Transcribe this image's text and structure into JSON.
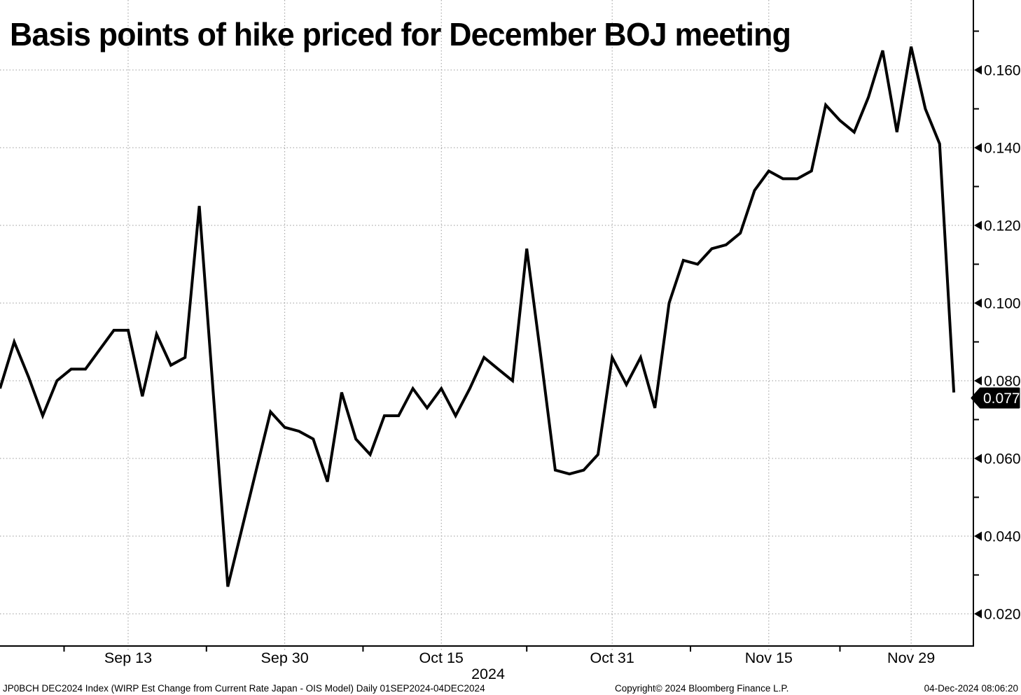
{
  "title": "Basis points of hike priced for December BOJ meeting",
  "last_value_label": "0.077",
  "footer": {
    "left": "JP0BCH DEC2024 Index (WIRP Est Change from Current Rate Japan - OIS Model)  Daily 01SEP2024-04DEC2024",
    "center": "Copyright© 2024 Bloomberg Finance L.P.",
    "right": "04-Dec-2024 08:06:20"
  },
  "colors": {
    "background": "#ffffff",
    "line": "#000000",
    "grid": "#9a9a9a",
    "axis": "#000000",
    "badge_bg": "#000000",
    "badge_text": "#ffffff"
  },
  "chart_data": {
    "type": "line",
    "title": "Basis points of hike priced for December BOJ meeting",
    "xlabel": "",
    "ylabel": "",
    "x_axis_year_label": "2024",
    "grid": "dotted",
    "legend": "none",
    "ylim": [
      0.01,
      0.178
    ],
    "y_ticks": [
      0.16,
      0.14,
      0.12,
      0.1,
      0.08,
      0.06,
      0.04,
      0.02
    ],
    "x_ticks": [
      {
        "label": "Sep 13",
        "index": 9
      },
      {
        "label": "Sep 30",
        "index": 20
      },
      {
        "label": "Oct 15",
        "index": 31
      },
      {
        "label": "Oct 31",
        "index": 43
      },
      {
        "label": "Nov 15",
        "index": 54
      },
      {
        "label": "Nov 29",
        "index": 64
      }
    ],
    "last_value": 0.077,
    "series": [
      {
        "name": "JP0BCH DEC2024 Index",
        "dates": [
          "Sep 2",
          "Sep 3",
          "Sep 4",
          "Sep 5",
          "Sep 6",
          "Sep 9",
          "Sep 10",
          "Sep 11",
          "Sep 12",
          "Sep 13",
          "Sep 16",
          "Sep 17",
          "Sep 18",
          "Sep 19",
          "Sep 20",
          "Sep 23",
          "Sep 24",
          "Sep 25",
          "Sep 26",
          "Sep 27",
          "Sep 30",
          "Oct 1",
          "Oct 2",
          "Oct 3",
          "Oct 4",
          "Oct 7",
          "Oct 8",
          "Oct 9",
          "Oct 10",
          "Oct 11",
          "Oct 14",
          "Oct 15",
          "Oct 16",
          "Oct 17",
          "Oct 18",
          "Oct 21",
          "Oct 22",
          "Oct 23",
          "Oct 24",
          "Oct 25",
          "Oct 28",
          "Oct 29",
          "Oct 30",
          "Oct 31",
          "Nov 1",
          "Nov 4",
          "Nov 5",
          "Nov 6",
          "Nov 7",
          "Nov 8",
          "Nov 11",
          "Nov 12",
          "Nov 13",
          "Nov 14",
          "Nov 15",
          "Nov 18",
          "Nov 19",
          "Nov 20",
          "Nov 21",
          "Nov 22",
          "Nov 25",
          "Nov 26",
          "Nov 27",
          "Nov 28",
          "Nov 29",
          "Dec 2",
          "Dec 3",
          "Dec 4"
        ],
        "values": [
          0.078,
          0.09,
          0.081,
          0.071,
          0.08,
          0.083,
          0.083,
          0.088,
          0.093,
          0.093,
          0.076,
          0.092,
          0.084,
          0.086,
          0.125,
          0.076,
          0.027,
          0.042,
          0.057,
          0.072,
          0.068,
          0.067,
          0.065,
          0.054,
          0.077,
          0.065,
          0.061,
          0.071,
          0.071,
          0.078,
          0.073,
          0.078,
          0.071,
          0.078,
          0.086,
          0.083,
          0.08,
          0.114,
          0.086,
          0.057,
          0.056,
          0.057,
          0.061,
          0.086,
          0.079,
          0.086,
          0.073,
          0.1,
          0.111,
          0.11,
          0.114,
          0.115,
          0.118,
          0.129,
          0.134,
          0.132,
          0.132,
          0.134,
          0.151,
          0.147,
          0.144,
          0.153,
          0.165,
          0.144,
          0.166,
          0.15,
          0.141,
          0.077
        ]
      }
    ]
  }
}
